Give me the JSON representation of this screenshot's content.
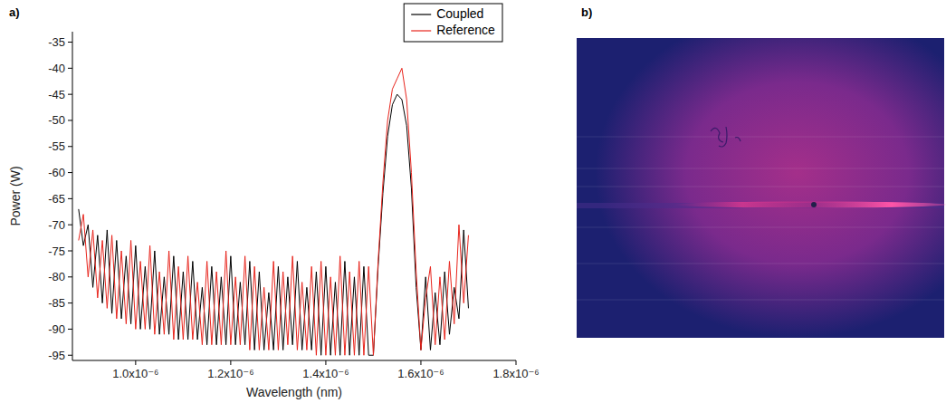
{
  "chart_data": {
    "type": "line",
    "panel_label": "a)",
    "x_label": "Wavelength (nm)",
    "y_label": "Power (W)",
    "xlim": [
      8.67e-07,
      1.8e-06
    ],
    "xticks": [
      {
        "value": 1e-06,
        "label": "1.0x10⁻⁶"
      },
      {
        "value": 1.2e-06,
        "label": "1.2x10⁻⁶"
      },
      {
        "value": 1.4e-06,
        "label": "1.4x10⁻⁶"
      },
      {
        "value": 1.6e-06,
        "label": "1.6x10⁻⁶"
      },
      {
        "value": 1.8e-06,
        "label": "1.8x10⁻⁶"
      }
    ],
    "ylim": [
      -96,
      -33
    ],
    "yticks": [
      -95,
      -90,
      -85,
      -80,
      -75,
      -70,
      -65,
      -60,
      -55,
      -50,
      -45,
      -40,
      -35
    ],
    "legend": "top-right",
    "grid": false,
    "x": [
      8.8e-07,
      8.9e-07,
      9e-07,
      9.1e-07,
      9.2e-07,
      9.3e-07,
      9.4e-07,
      9.5e-07,
      9.6e-07,
      9.7e-07,
      9.8e-07,
      9.9e-07,
      1e-06,
      1.01e-06,
      1.02e-06,
      1.03e-06,
      1.04e-06,
      1.05e-06,
      1.06e-06,
      1.07e-06,
      1.08e-06,
      1.09e-06,
      1.1e-06,
      1.11e-06,
      1.12e-06,
      1.13e-06,
      1.14e-06,
      1.15e-06,
      1.16e-06,
      1.17e-06,
      1.18e-06,
      1.19e-06,
      1.2e-06,
      1.21e-06,
      1.22e-06,
      1.23e-06,
      1.24e-06,
      1.25e-06,
      1.26e-06,
      1.27e-06,
      1.28e-06,
      1.29e-06,
      1.3e-06,
      1.31e-06,
      1.32e-06,
      1.33e-06,
      1.34e-06,
      1.35e-06,
      1.36e-06,
      1.37e-06,
      1.38e-06,
      1.39e-06,
      1.4e-06,
      1.41e-06,
      1.42e-06,
      1.43e-06,
      1.44e-06,
      1.45e-06,
      1.46e-06,
      1.47e-06,
      1.48e-06,
      1.49e-06,
      1.5e-06,
      1.51e-06,
      1.52e-06,
      1.53e-06,
      1.54e-06,
      1.55e-06,
      1.56e-06,
      1.57e-06,
      1.58e-06,
      1.59e-06,
      1.6e-06,
      1.61e-06,
      1.62e-06,
      1.63e-06,
      1.64e-06,
      1.65e-06,
      1.66e-06,
      1.67e-06,
      1.68e-06,
      1.69e-06,
      1.7e-06
    ],
    "series": [
      {
        "name": "Coupled",
        "color": "#000000",
        "values": [
          -67,
          -74,
          -70,
          -82,
          -72,
          -85,
          -71,
          -87,
          -73,
          -88,
          -76,
          -89,
          -74,
          -90,
          -78,
          -90,
          -75,
          -91,
          -80,
          -91,
          -76,
          -92,
          -79,
          -92,
          -77,
          -92,
          -82,
          -93,
          -78,
          -93,
          -80,
          -93,
          -76,
          -93,
          -81,
          -93,
          -77,
          -94,
          -79,
          -94,
          -83,
          -94,
          -78,
          -94,
          -80,
          -93,
          -77,
          -94,
          -82,
          -94,
          -79,
          -95,
          -78,
          -95,
          -81,
          -95,
          -77,
          -95,
          -80,
          -95,
          -78,
          -95,
          -95,
          -78,
          -64,
          -53,
          -47,
          -45,
          -46,
          -51,
          -63,
          -82,
          -94,
          -80,
          -94,
          -83,
          -93,
          -79,
          -91,
          -82,
          -88,
          -71,
          -86
        ]
      },
      {
        "name": "Reference",
        "color": "#e8241c",
        "values": [
          -73,
          -68,
          -80,
          -71,
          -84,
          -73,
          -86,
          -72,
          -88,
          -75,
          -89,
          -73,
          -90,
          -77,
          -90,
          -74,
          -91,
          -79,
          -91,
          -75,
          -92,
          -78,
          -92,
          -76,
          -92,
          -81,
          -93,
          -77,
          -93,
          -79,
          -93,
          -75,
          -93,
          -80,
          -93,
          -76,
          -94,
          -78,
          -94,
          -82,
          -94,
          -77,
          -94,
          -79,
          -93,
          -76,
          -94,
          -81,
          -94,
          -78,
          -95,
          -77,
          -95,
          -80,
          -95,
          -76,
          -95,
          -79,
          -95,
          -77,
          -95,
          -78,
          -95,
          -77,
          -62,
          -50,
          -44,
          -42,
          -40,
          -46,
          -60,
          -79,
          -94,
          -84,
          -78,
          -93,
          -80,
          -92,
          -77,
          -89,
          -70,
          -85,
          -72
        ]
      }
    ]
  },
  "image": {
    "panel_label": "b)"
  }
}
